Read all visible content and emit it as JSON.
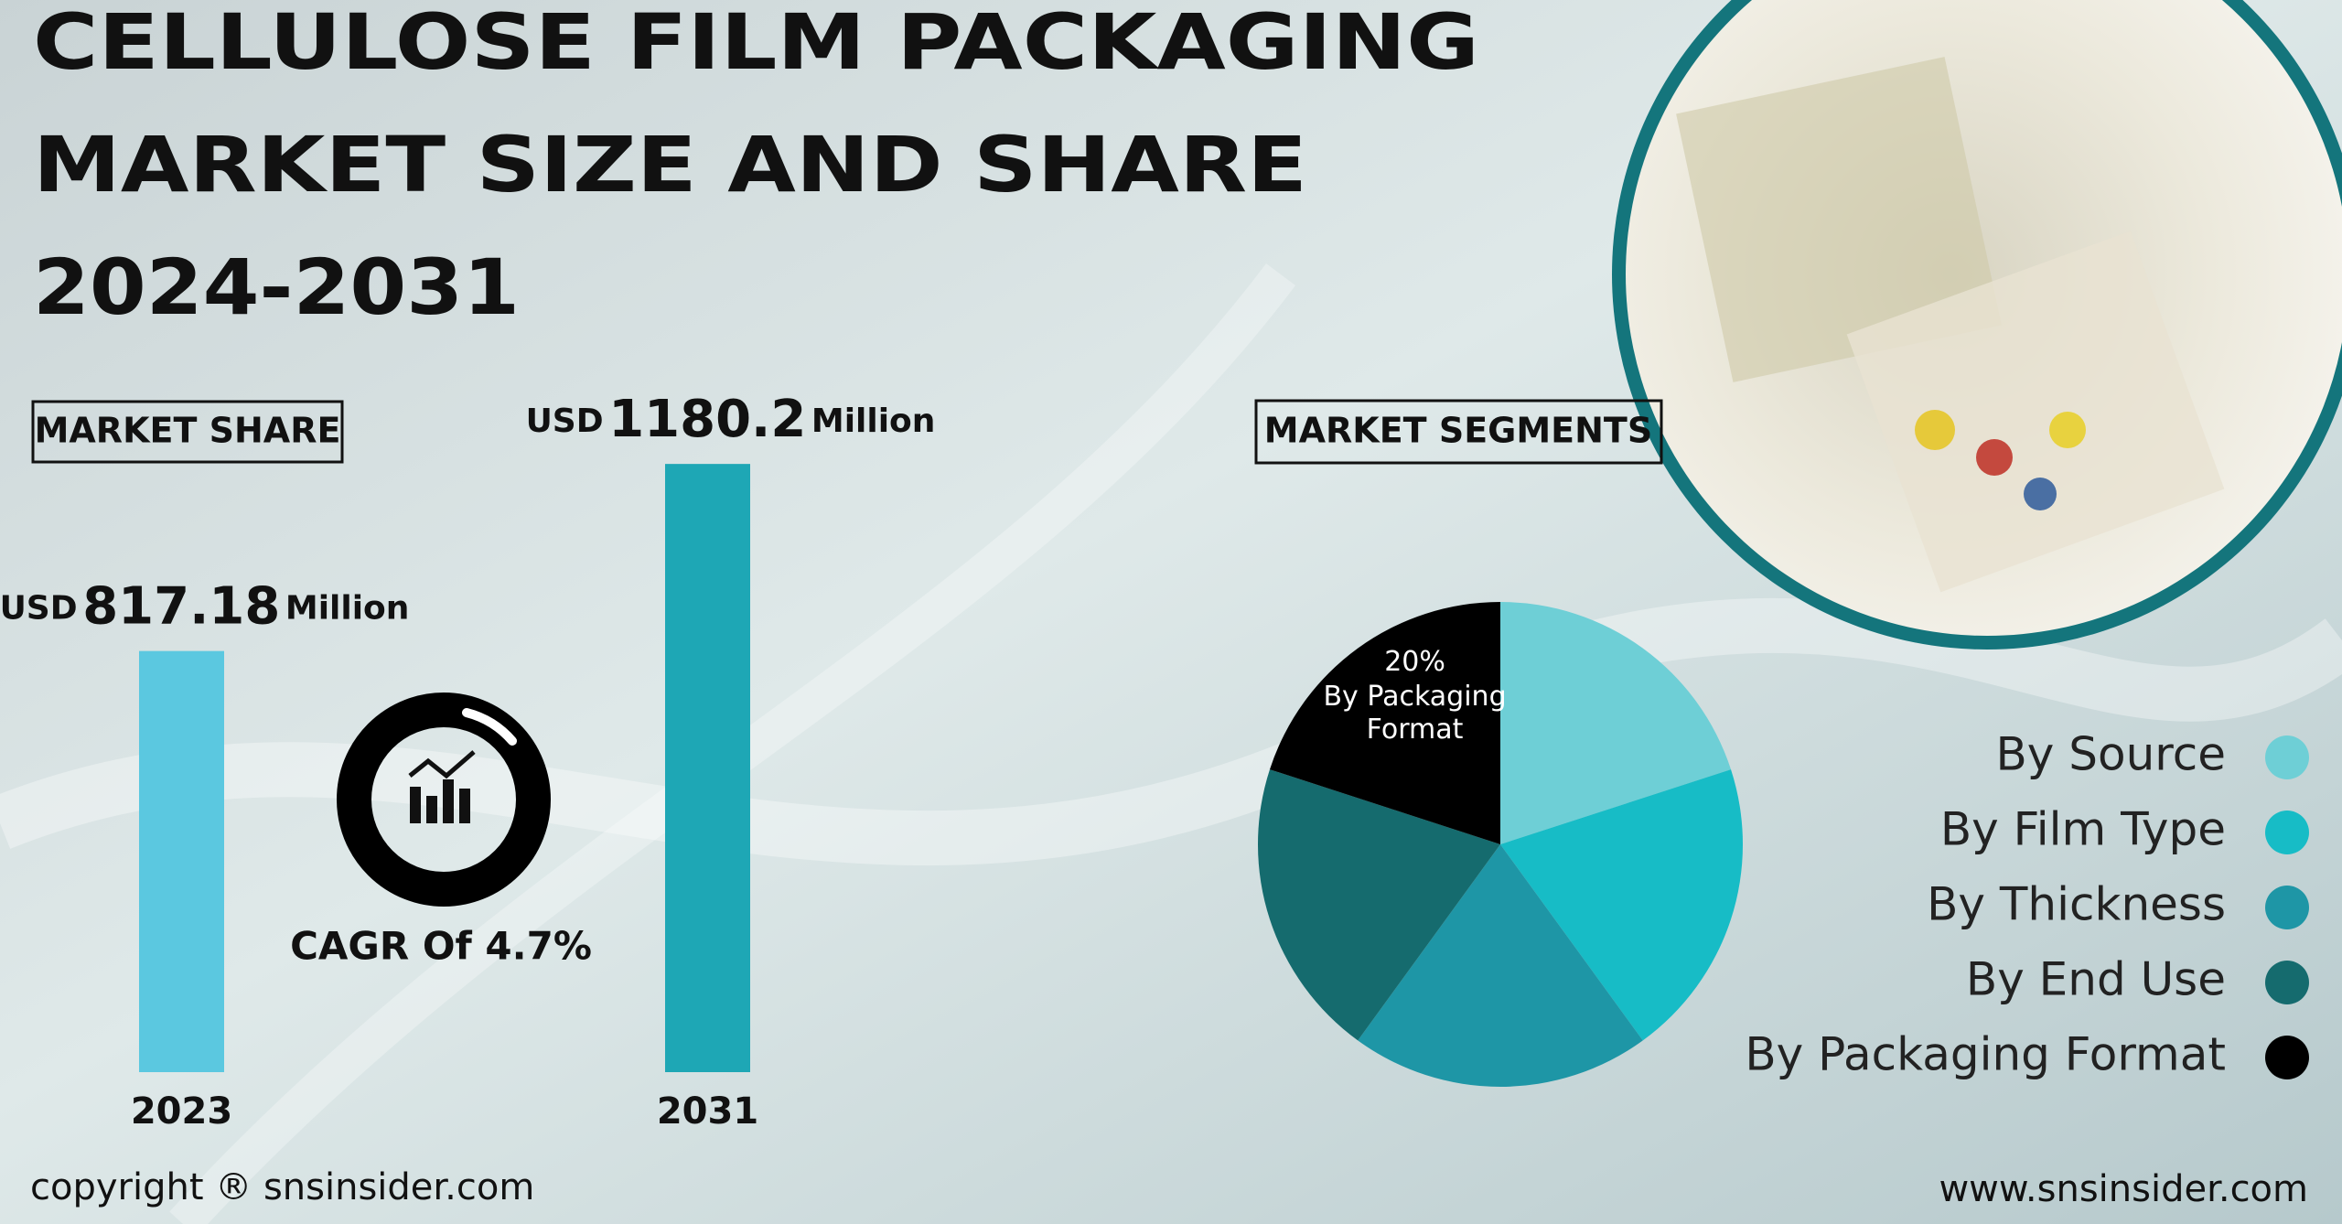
{
  "header": {
    "title_lines": [
      "CELLULOSE FILM PACKAGING",
      "MARKET SIZE AND SHARE",
      "2024-2031"
    ]
  },
  "sections": {
    "market_share": "MARKET SHARE",
    "market_segments": "MARKET SEGMENTS"
  },
  "cagr": "CAGR Of 4.7%",
  "footer": {
    "copyright": "copyright ® snsinsider.com",
    "website": "www.snsinsider.com"
  },
  "chart_data": [
    {
      "type": "bar",
      "categories": [
        "2023",
        "2031"
      ],
      "values": [
        817.18,
        1180.2
      ],
      "colors": [
        "#5bc8e0",
        "#1ea7b5"
      ],
      "unit_prefix": "USD",
      "unit_suffix": "Million",
      "ylim": [
        0,
        1200
      ]
    },
    {
      "type": "pie",
      "categories": [
        "By Source",
        "By Film Type",
        "By Thickness",
        "By End Use",
        "By Packaging Format"
      ],
      "values": [
        20,
        20,
        20,
        20,
        20
      ],
      "value_labels": [
        null,
        null,
        null,
        null,
        "20%"
      ],
      "colors": [
        "#6ecfd6",
        "#17bcc6",
        "#1e96a6",
        "#156b6e",
        "#000000"
      ],
      "legend": "right"
    }
  ]
}
